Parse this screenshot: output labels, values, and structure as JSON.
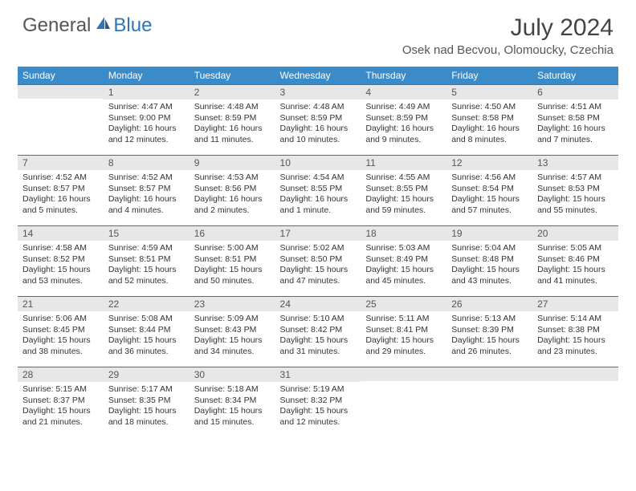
{
  "brand": {
    "part1": "General",
    "part2": "Blue"
  },
  "title": {
    "month": "July 2024",
    "location": "Osek nad Becvou, Olomoucky, Czechia"
  },
  "colors": {
    "header_bg": "#3b8bc8",
    "accent": "#2e75b6",
    "daynum_bg": "#e7e7e7",
    "text": "#333333"
  },
  "weekdays": [
    "Sunday",
    "Monday",
    "Tuesday",
    "Wednesday",
    "Thursday",
    "Friday",
    "Saturday"
  ],
  "weeks": [
    [
      {
        "n": "",
        "lines": []
      },
      {
        "n": "1",
        "lines": [
          "Sunrise: 4:47 AM",
          "Sunset: 9:00 PM",
          "Daylight: 16 hours and 12 minutes."
        ]
      },
      {
        "n": "2",
        "lines": [
          "Sunrise: 4:48 AM",
          "Sunset: 8:59 PM",
          "Daylight: 16 hours and 11 minutes."
        ]
      },
      {
        "n": "3",
        "lines": [
          "Sunrise: 4:48 AM",
          "Sunset: 8:59 PM",
          "Daylight: 16 hours and 10 minutes."
        ]
      },
      {
        "n": "4",
        "lines": [
          "Sunrise: 4:49 AM",
          "Sunset: 8:59 PM",
          "Daylight: 16 hours and 9 minutes."
        ]
      },
      {
        "n": "5",
        "lines": [
          "Sunrise: 4:50 AM",
          "Sunset: 8:58 PM",
          "Daylight: 16 hours and 8 minutes."
        ]
      },
      {
        "n": "6",
        "lines": [
          "Sunrise: 4:51 AM",
          "Sunset: 8:58 PM",
          "Daylight: 16 hours and 7 minutes."
        ]
      }
    ],
    [
      {
        "n": "7",
        "lines": [
          "Sunrise: 4:52 AM",
          "Sunset: 8:57 PM",
          "Daylight: 16 hours and 5 minutes."
        ]
      },
      {
        "n": "8",
        "lines": [
          "Sunrise: 4:52 AM",
          "Sunset: 8:57 PM",
          "Daylight: 16 hours and 4 minutes."
        ]
      },
      {
        "n": "9",
        "lines": [
          "Sunrise: 4:53 AM",
          "Sunset: 8:56 PM",
          "Daylight: 16 hours and 2 minutes."
        ]
      },
      {
        "n": "10",
        "lines": [
          "Sunrise: 4:54 AM",
          "Sunset: 8:55 PM",
          "Daylight: 16 hours and 1 minute."
        ]
      },
      {
        "n": "11",
        "lines": [
          "Sunrise: 4:55 AM",
          "Sunset: 8:55 PM",
          "Daylight: 15 hours and 59 minutes."
        ]
      },
      {
        "n": "12",
        "lines": [
          "Sunrise: 4:56 AM",
          "Sunset: 8:54 PM",
          "Daylight: 15 hours and 57 minutes."
        ]
      },
      {
        "n": "13",
        "lines": [
          "Sunrise: 4:57 AM",
          "Sunset: 8:53 PM",
          "Daylight: 15 hours and 55 minutes."
        ]
      }
    ],
    [
      {
        "n": "14",
        "lines": [
          "Sunrise: 4:58 AM",
          "Sunset: 8:52 PM",
          "Daylight: 15 hours and 53 minutes."
        ]
      },
      {
        "n": "15",
        "lines": [
          "Sunrise: 4:59 AM",
          "Sunset: 8:51 PM",
          "Daylight: 15 hours and 52 minutes."
        ]
      },
      {
        "n": "16",
        "lines": [
          "Sunrise: 5:00 AM",
          "Sunset: 8:51 PM",
          "Daylight: 15 hours and 50 minutes."
        ]
      },
      {
        "n": "17",
        "lines": [
          "Sunrise: 5:02 AM",
          "Sunset: 8:50 PM",
          "Daylight: 15 hours and 47 minutes."
        ]
      },
      {
        "n": "18",
        "lines": [
          "Sunrise: 5:03 AM",
          "Sunset: 8:49 PM",
          "Daylight: 15 hours and 45 minutes."
        ]
      },
      {
        "n": "19",
        "lines": [
          "Sunrise: 5:04 AM",
          "Sunset: 8:48 PM",
          "Daylight: 15 hours and 43 minutes."
        ]
      },
      {
        "n": "20",
        "lines": [
          "Sunrise: 5:05 AM",
          "Sunset: 8:46 PM",
          "Daylight: 15 hours and 41 minutes."
        ]
      }
    ],
    [
      {
        "n": "21",
        "lines": [
          "Sunrise: 5:06 AM",
          "Sunset: 8:45 PM",
          "Daylight: 15 hours and 38 minutes."
        ]
      },
      {
        "n": "22",
        "lines": [
          "Sunrise: 5:08 AM",
          "Sunset: 8:44 PM",
          "Daylight: 15 hours and 36 minutes."
        ]
      },
      {
        "n": "23",
        "lines": [
          "Sunrise: 5:09 AM",
          "Sunset: 8:43 PM",
          "Daylight: 15 hours and 34 minutes."
        ]
      },
      {
        "n": "24",
        "lines": [
          "Sunrise: 5:10 AM",
          "Sunset: 8:42 PM",
          "Daylight: 15 hours and 31 minutes."
        ]
      },
      {
        "n": "25",
        "lines": [
          "Sunrise: 5:11 AM",
          "Sunset: 8:41 PM",
          "Daylight: 15 hours and 29 minutes."
        ]
      },
      {
        "n": "26",
        "lines": [
          "Sunrise: 5:13 AM",
          "Sunset: 8:39 PM",
          "Daylight: 15 hours and 26 minutes."
        ]
      },
      {
        "n": "27",
        "lines": [
          "Sunrise: 5:14 AM",
          "Sunset: 8:38 PM",
          "Daylight: 15 hours and 23 minutes."
        ]
      }
    ],
    [
      {
        "n": "28",
        "lines": [
          "Sunrise: 5:15 AM",
          "Sunset: 8:37 PM",
          "Daylight: 15 hours and 21 minutes."
        ]
      },
      {
        "n": "29",
        "lines": [
          "Sunrise: 5:17 AM",
          "Sunset: 8:35 PM",
          "Daylight: 15 hours and 18 minutes."
        ]
      },
      {
        "n": "30",
        "lines": [
          "Sunrise: 5:18 AM",
          "Sunset: 8:34 PM",
          "Daylight: 15 hours and 15 minutes."
        ]
      },
      {
        "n": "31",
        "lines": [
          "Sunrise: 5:19 AM",
          "Sunset: 8:32 PM",
          "Daylight: 15 hours and 12 minutes."
        ]
      },
      {
        "n": "",
        "lines": []
      },
      {
        "n": "",
        "lines": []
      },
      {
        "n": "",
        "lines": []
      }
    ]
  ]
}
